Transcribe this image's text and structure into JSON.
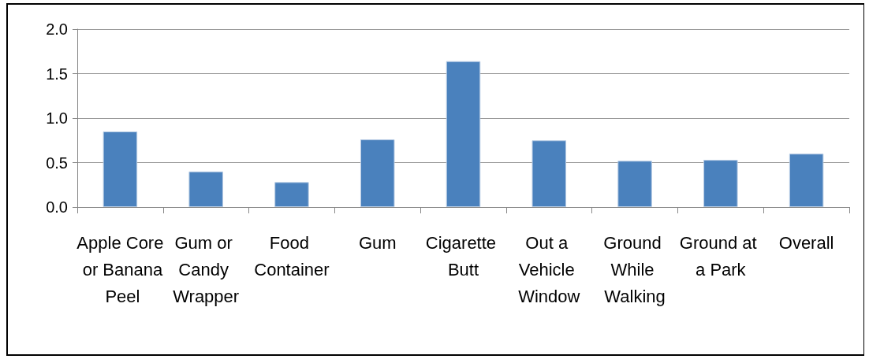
{
  "chart_data": {
    "type": "bar",
    "categories": [
      "Apple Core or Banana Peel",
      "Gum or Candy Wrapper",
      "Food Container",
      "Gum",
      "Cigarette Butt",
      "Out a Vehicle Window",
      "Ground While Walking",
      "Ground at a Park",
      "Overall"
    ],
    "values": [
      0.85,
      0.4,
      0.28,
      0.76,
      1.64,
      0.75,
      0.52,
      0.53,
      0.6
    ],
    "color": "#4a81bd",
    "ylim": [
      0,
      2
    ],
    "yticks": [
      {
        "value": 0,
        "label": "0.0"
      },
      {
        "value": 0.5,
        "label": "0.5"
      },
      {
        "value": 1,
        "label": "1.0"
      },
      {
        "value": 1.5,
        "label": "1.5"
      },
      {
        "value": 2,
        "label": "2.0"
      }
    ],
    "grid": "y"
  }
}
